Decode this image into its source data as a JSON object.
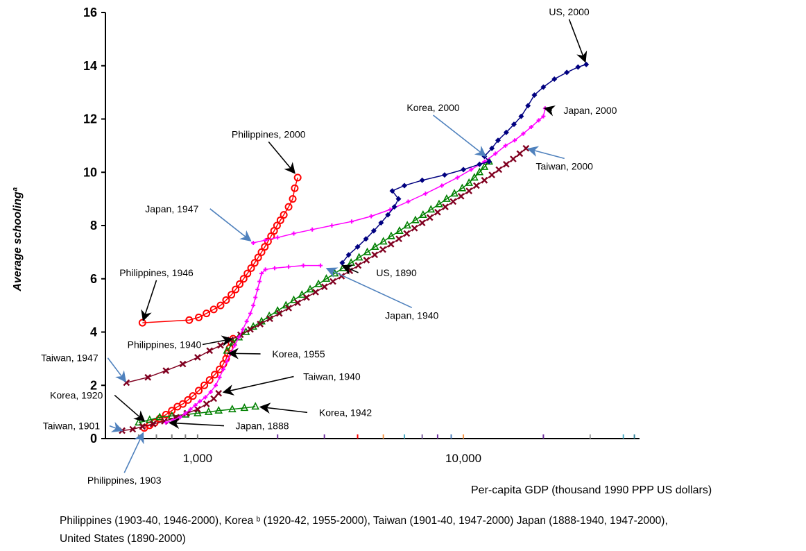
{
  "chart_data": {
    "type": "scatter",
    "xscale": "log",
    "xlim": [
      450,
      46000
    ],
    "ylim": [
      0,
      16
    ],
    "yticks": [
      "0",
      "2",
      "4",
      "6",
      "8",
      "10",
      "12",
      "14",
      "16"
    ],
    "xticks": [
      "1,000",
      "10,000"
    ],
    "ylabel": "Average schoolingª",
    "xlabel": "Per-capita GDP (thousand 1990 PPP US dollars)",
    "grid": false,
    "series": [
      {
        "name": "Philippines",
        "color": "#ff0000",
        "marker": "circle",
        "segments": [
          [
            [
              630,
              0.4
            ],
            [
              660,
              0.5
            ],
            [
              690,
              0.6
            ],
            [
              720,
              0.75
            ],
            [
              760,
              0.9
            ],
            [
              800,
              1.05
            ],
            [
              840,
              1.2
            ],
            [
              880,
              1.3
            ],
            [
              920,
              1.45
            ],
            [
              960,
              1.6
            ],
            [
              1010,
              1.8
            ],
            [
              1060,
              2.0
            ],
            [
              1110,
              2.2
            ],
            [
              1160,
              2.4
            ],
            [
              1210,
              2.6
            ],
            [
              1250,
              2.8
            ],
            [
              1280,
              3.0
            ],
            [
              1300,
              3.2
            ],
            [
              1320,
              3.4
            ],
            [
              1340,
              3.6
            ],
            [
              1360,
              3.75
            ]
          ],
          [
            [
              620,
              4.35
            ],
            [
              930,
              4.45
            ],
            [
              1010,
              4.55
            ],
            [
              1080,
              4.7
            ],
            [
              1150,
              4.85
            ],
            [
              1220,
              5.0
            ],
            [
              1280,
              5.2
            ],
            [
              1340,
              5.4
            ],
            [
              1390,
              5.6
            ],
            [
              1440,
              5.8
            ],
            [
              1490,
              6.0
            ],
            [
              1540,
              6.2
            ],
            [
              1590,
              6.4
            ],
            [
              1640,
              6.6
            ],
            [
              1690,
              6.8
            ],
            [
              1740,
              7.0
            ],
            [
              1790,
              7.2
            ],
            [
              1840,
              7.4
            ],
            [
              1890,
              7.6
            ],
            [
              1940,
              7.8
            ],
            [
              1990,
              8.0
            ],
            [
              2050,
              8.2
            ],
            [
              2110,
              8.4
            ],
            [
              2200,
              8.7
            ],
            [
              2280,
              9.0
            ],
            [
              2320,
              9.4
            ],
            [
              2380,
              9.8
            ]
          ]
        ]
      },
      {
        "name": "Korea",
        "color": "#008000",
        "marker": "triangle",
        "segments": [
          [
            [
              600,
              0.6
            ],
            [
              660,
              0.7
            ],
            [
              720,
              0.8
            ],
            [
              800,
              0.85
            ],
            [
              900,
              0.9
            ],
            [
              1000,
              0.95
            ],
            [
              1100,
              1.0
            ],
            [
              1200,
              1.05
            ],
            [
              1350,
              1.1
            ],
            [
              1500,
              1.15
            ],
            [
              1650,
              1.2
            ]
          ],
          [
            [
              1290,
              3.3
            ],
            [
              1360,
              3.6
            ],
            [
              1430,
              3.8
            ],
            [
              1520,
              4.0
            ],
            [
              1620,
              4.2
            ],
            [
              1740,
              4.4
            ],
            [
              1860,
              4.6
            ],
            [
              2000,
              4.8
            ],
            [
              2150,
              5.0
            ],
            [
              2300,
              5.2
            ],
            [
              2470,
              5.4
            ],
            [
              2650,
              5.6
            ],
            [
              2850,
              5.8
            ],
            [
              3050,
              6.0
            ],
            [
              3280,
              6.2
            ],
            [
              3520,
              6.4
            ],
            [
              3780,
              6.6
            ],
            [
              4050,
              6.8
            ],
            [
              4350,
              7.0
            ],
            [
              4650,
              7.2
            ],
            [
              5000,
              7.4
            ],
            [
              5350,
              7.6
            ],
            [
              5750,
              7.8
            ],
            [
              6150,
              8.0
            ],
            [
              6600,
              8.2
            ],
            [
              7050,
              8.4
            ],
            [
              7550,
              8.6
            ],
            [
              8100,
              8.8
            ],
            [
              8650,
              9.0
            ],
            [
              9250,
              9.2
            ],
            [
              9900,
              9.4
            ],
            [
              10500,
              9.6
            ],
            [
              11000,
              9.8
            ],
            [
              11500,
              10.0
            ],
            [
              12000,
              10.2
            ],
            [
              12500,
              10.4
            ]
          ]
        ]
      },
      {
        "name": "Taiwan",
        "color": "#800020",
        "marker": "x",
        "segments": [
          [
            [
              520,
              0.3
            ],
            [
              570,
              0.35
            ],
            [
              620,
              0.45
            ],
            [
              680,
              0.55
            ],
            [
              750,
              0.65
            ],
            [
              830,
              0.8
            ],
            [
              910,
              0.95
            ],
            [
              1000,
              1.1
            ],
            [
              1080,
              1.3
            ],
            [
              1150,
              1.5
            ],
            [
              1200,
              1.7
            ]
          ],
          [
            [
              540,
              2.1
            ],
            [
              650,
              2.3
            ],
            [
              760,
              2.55
            ],
            [
              880,
              2.8
            ],
            [
              1000,
              3.05
            ],
            [
              1110,
              3.3
            ],
            [
              1220,
              3.5
            ],
            [
              1330,
              3.7
            ],
            [
              1450,
              3.9
            ],
            [
              1580,
              4.1
            ],
            [
              1720,
              4.3
            ],
            [
              1870,
              4.5
            ],
            [
              2030,
              4.7
            ],
            [
              2200,
              4.9
            ],
            [
              2380,
              5.1
            ],
            [
              2570,
              5.3
            ],
            [
              2780,
              5.5
            ],
            [
              3000,
              5.7
            ],
            [
              3230,
              5.9
            ],
            [
              3480,
              6.1
            ],
            [
              3740,
              6.3
            ],
            [
              4020,
              6.5
            ],
            [
              4320,
              6.7
            ],
            [
              4640,
              6.9
            ],
            [
              4980,
              7.1
            ],
            [
              5340,
              7.3
            ],
            [
              5720,
              7.5
            ],
            [
              6120,
              7.7
            ],
            [
              6550,
              7.9
            ],
            [
              7000,
              8.1
            ],
            [
              7480,
              8.3
            ],
            [
              8000,
              8.5
            ],
            [
              8550,
              8.7
            ],
            [
              9150,
              8.9
            ],
            [
              9800,
              9.1
            ],
            [
              10500,
              9.3
            ],
            [
              11200,
              9.5
            ],
            [
              12000,
              9.7
            ],
            [
              12800,
              9.9
            ],
            [
              13600,
              10.1
            ],
            [
              14500,
              10.3
            ],
            [
              15400,
              10.5
            ],
            [
              16300,
              10.7
            ],
            [
              17200,
              10.9
            ]
          ]
        ]
      },
      {
        "name": "Japan",
        "color": "#ff00ff",
        "marker": "plus",
        "segments": [
          [
            [
              760,
              0.6
            ],
            [
              810,
              0.7
            ],
            [
              860,
              0.8
            ],
            [
              900,
              0.95
            ],
            [
              940,
              1.1
            ],
            [
              980,
              1.25
            ],
            [
              1020,
              1.4
            ],
            [
              1070,
              1.55
            ],
            [
              1120,
              1.75
            ],
            [
              1170,
              2.0
            ],
            [
              1210,
              2.3
            ],
            [
              1250,
              2.6
            ],
            [
              1290,
              2.9
            ],
            [
              1330,
              3.2
            ],
            [
              1380,
              3.5
            ],
            [
              1430,
              3.8
            ],
            [
              1480,
              4.1
            ],
            [
              1530,
              4.4
            ],
            [
              1580,
              4.7
            ],
            [
              1620,
              5.0
            ],
            [
              1650,
              5.3
            ],
            [
              1680,
              5.6
            ],
            [
              1710,
              5.9
            ],
            [
              1740,
              6.2
            ],
            [
              1800,
              6.35
            ],
            [
              1950,
              6.4
            ],
            [
              2200,
              6.45
            ],
            [
              2500,
              6.5
            ],
            [
              2900,
              6.5
            ]
          ],
          [
            [
              1620,
              7.35
            ],
            [
              1800,
              7.45
            ],
            [
              2000,
              7.55
            ],
            [
              2300,
              7.7
            ],
            [
              2700,
              7.85
            ],
            [
              3200,
              8.0
            ],
            [
              3800,
              8.15
            ],
            [
              4500,
              8.35
            ],
            [
              5300,
              8.6
            ],
            [
              6200,
              8.9
            ],
            [
              7200,
              9.2
            ],
            [
              8300,
              9.5
            ],
            [
              9500,
              9.8
            ],
            [
              10700,
              10.1
            ],
            [
              12000,
              10.4
            ],
            [
              13200,
              10.7
            ],
            [
              14400,
              11.0
            ],
            [
              15600,
              11.2
            ],
            [
              16800,
              11.45
            ],
            [
              18000,
              11.7
            ],
            [
              19200,
              11.95
            ],
            [
              20000,
              12.1
            ],
            [
              20300,
              12.4
            ]
          ]
        ]
      },
      {
        "name": "United States",
        "color": "#000080",
        "marker": "diamond",
        "segments": [
          [
            [
              3500,
              6.6
            ],
            [
              3700,
              6.9
            ],
            [
              4000,
              7.2
            ],
            [
              4300,
              7.5
            ],
            [
              4600,
              7.8
            ],
            [
              4900,
              8.1
            ],
            [
              5200,
              8.4
            ],
            [
              5500,
              8.7
            ],
            [
              5700,
              9.0
            ],
            [
              5400,
              9.3
            ],
            [
              6000,
              9.5
            ],
            [
              7000,
              9.7
            ],
            [
              8500,
              9.9
            ],
            [
              10000,
              10.1
            ],
            [
              11500,
              10.3
            ],
            [
              12500,
              10.4
            ],
            [
              12000,
              10.6
            ],
            [
              12800,
              10.9
            ],
            [
              13500,
              11.2
            ],
            [
              14500,
              11.5
            ],
            [
              15500,
              11.8
            ],
            [
              16500,
              12.1
            ],
            [
              17500,
              12.5
            ],
            [
              18500,
              12.9
            ],
            [
              20000,
              13.2
            ],
            [
              22000,
              13.5
            ],
            [
              24500,
              13.75
            ],
            [
              27000,
              13.95
            ],
            [
              29000,
              14.05
            ]
          ]
        ]
      }
    ],
    "annotations": [
      {
        "label": "US, 2000",
        "x": 29000,
        "y": 14.05,
        "tx": 25000,
        "ty": 15.9,
        "color": "#000000"
      },
      {
        "label": "Japan, 2000",
        "x": 20300,
        "y": 12.4,
        "tx": 30000,
        "ty": 12.2,
        "color": "#000000"
      },
      {
        "label": "Korea, 2000",
        "x": 12500,
        "y": 10.5,
        "tx": 7700,
        "ty": 12.3,
        "color": "#4f81bd"
      },
      {
        "label": "Taiwan, 2000",
        "x": 17200,
        "y": 10.9,
        "tx": 24000,
        "ty": 10.1,
        "color": "#4f81bd"
      },
      {
        "label": "Philippines, 2000",
        "x": 2350,
        "y": 9.9,
        "tx": 1850,
        "ty": 11.3,
        "color": "#000000"
      },
      {
        "label": "Japan, 1947",
        "x": 1620,
        "y": 7.35,
        "tx": 800,
        "ty": 8.5,
        "color": "#4f81bd"
      },
      {
        "label": "Philippines, 1946",
        "x": 620,
        "y": 4.35,
        "tx": 700,
        "ty": 6.1,
        "color": "#000000"
      },
      {
        "label": "US, 1890",
        "x": 3500,
        "y": 6.5,
        "tx": 5600,
        "ty": 6.1,
        "color": "#000000"
      },
      {
        "label": "Japan, 1940",
        "x": 2900,
        "y": 6.5,
        "tx": 6400,
        "ty": 4.5,
        "color": "#4f81bd"
      },
      {
        "label": "Philippines, 1940",
        "x": 1360,
        "y": 3.75,
        "tx": 750,
        "ty": 3.4,
        "color": "#000000"
      },
      {
        "label": "Korea, 1955",
        "x": 1290,
        "y": 3.2,
        "tx": 2400,
        "ty": 3.05,
        "color": "#000000"
      },
      {
        "label": "Taiwan, 1947",
        "x": 540,
        "y": 2.1,
        "tx": 330,
        "ty": 2.9,
        "color": "#4f81bd"
      },
      {
        "label": "Taiwan, 1940",
        "x": 1200,
        "y": 1.7,
        "tx": 3200,
        "ty": 2.2,
        "color": "#000000"
      },
      {
        "label": "Korea, 1920",
        "x": 640,
        "y": 0.6,
        "tx": 350,
        "ty": 1.5,
        "color": "#000000"
      },
      {
        "label": "Korea, 1942",
        "x": 1680,
        "y": 1.2,
        "tx": 3600,
        "ty": 0.85,
        "color": "#000000"
      },
      {
        "label": "Japan, 1888",
        "x": 760,
        "y": 0.6,
        "tx": 1750,
        "ty": 0.35,
        "color": "#000000"
      },
      {
        "label": "Taiwan, 1901",
        "x": 520,
        "y": 0.3,
        "tx": 335,
        "ty": 0.35,
        "color": "#4f81bd"
      },
      {
        "label": "Philippines, 1903",
        "x": 630,
        "y": 0.3,
        "tx": 530,
        "ty": -1.7,
        "color": "#4f81bd"
      }
    ]
  },
  "caption_line1": "Philippines (1903-40, 1946-2000), Korea ᵇ (1920-42, 1955-2000), Taiwan (1901-40, 1947-2000) Japan (1888-1940, 1947-2000),",
  "caption_line2": "United States  (1890-2000)"
}
